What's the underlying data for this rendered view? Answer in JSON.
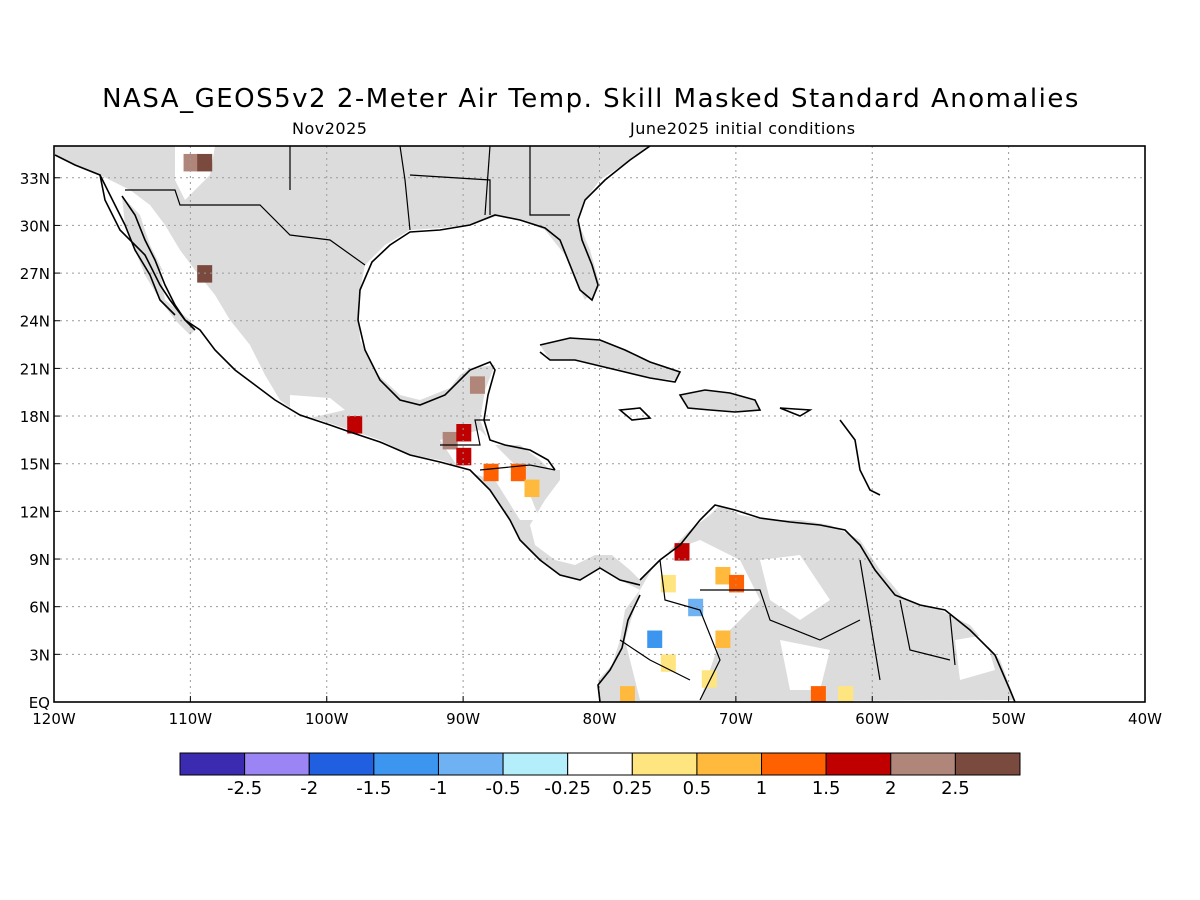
{
  "title": "NASA_GEOS5v2 2-Meter Air Temp. Skill Masked Standard Anomalies",
  "subtitle_left": "Nov2025",
  "subtitle_right": "June2025 initial conditions",
  "map": {
    "lon_range": [
      -120,
      -40
    ],
    "lat_range": [
      0,
      35
    ],
    "grid": true,
    "land_mask_color": "#dcdcdc",
    "lat_ticks": [
      {
        "lat": 33,
        "label": "33N"
      },
      {
        "lat": 30,
        "label": "30N"
      },
      {
        "lat": 27,
        "label": "27N"
      },
      {
        "lat": 24,
        "label": "24N"
      },
      {
        "lat": 21,
        "label": "21N"
      },
      {
        "lat": 18,
        "label": "18N"
      },
      {
        "lat": 15,
        "label": "15N"
      },
      {
        "lat": 12,
        "label": "12N"
      },
      {
        "lat": 9,
        "label": "9N"
      },
      {
        "lat": 6,
        "label": "6N"
      },
      {
        "lat": 3,
        "label": "3N"
      },
      {
        "lat": 0,
        "label": "EQ"
      }
    ],
    "lon_ticks": [
      {
        "lon": -120,
        "label": "120W"
      },
      {
        "lon": -110,
        "label": "110W"
      },
      {
        "lon": -100,
        "label": "100W"
      },
      {
        "lon": -90,
        "label": "90W"
      },
      {
        "lon": -80,
        "label": "80W"
      },
      {
        "lon": -70,
        "label": "70W"
      },
      {
        "lon": -60,
        "label": "60W"
      },
      {
        "lon": -50,
        "label": "50W"
      },
      {
        "lon": -40,
        "label": "40W"
      }
    ],
    "anomaly_cells": [
      {
        "lon": -110,
        "lat": 34,
        "value": 2.2
      },
      {
        "lon": -109,
        "lat": 34,
        "value": 2.7
      },
      {
        "lon": -109,
        "lat": 27,
        "value": 2.7
      },
      {
        "lon": -98,
        "lat": 17.5,
        "value": 1.8
      },
      {
        "lon": -91,
        "lat": 16.5,
        "value": 2.2
      },
      {
        "lon": -90,
        "lat": 17,
        "value": 1.9
      },
      {
        "lon": -90,
        "lat": 15.5,
        "value": 1.8
      },
      {
        "lon": -89,
        "lat": 20,
        "value": 2.3
      },
      {
        "lon": -88,
        "lat": 14.5,
        "value": 1.2
      },
      {
        "lon": -86,
        "lat": 14.5,
        "value": 1.1
      },
      {
        "lon": -85,
        "lat": 13.5,
        "value": 0.6
      },
      {
        "lon": -74,
        "lat": 9.5,
        "value": 1.8
      },
      {
        "lon": -71,
        "lat": 8,
        "value": 0.6
      },
      {
        "lon": -70,
        "lat": 7.5,
        "value": 1.2
      },
      {
        "lon": -75,
        "lat": 7.5,
        "value": 0.4
      },
      {
        "lon": -73,
        "lat": 6,
        "value": -0.8
      },
      {
        "lon": -76,
        "lat": 4,
        "value": -1.2
      },
      {
        "lon": -71,
        "lat": 4,
        "value": 0.7
      },
      {
        "lon": -75,
        "lat": 2.5,
        "value": 0.5
      },
      {
        "lon": -72,
        "lat": 1.5,
        "value": 0.4
      },
      {
        "lon": -64,
        "lat": 0.5,
        "value": 1.1
      },
      {
        "lon": -62,
        "lat": 0.5,
        "value": 0.4
      },
      {
        "lon": -78,
        "lat": 0.5,
        "value": 0.6
      }
    ]
  },
  "colorbar": {
    "colors": [
      "#3b2bb0",
      "#9b85f5",
      "#2060e0",
      "#3c96f0",
      "#6eb2f3",
      "#b4eefa",
      "#ffffff",
      "#ffe57f",
      "#ffb93c",
      "#ff6000",
      "#c00000",
      "#b0867a",
      "#7a4a3e"
    ],
    "labels": [
      "-2.5",
      "-2",
      "-1.5",
      "-1",
      "-0.5",
      "-0.25",
      "0.25",
      "0.5",
      "1",
      "1.5",
      "2",
      "2.5"
    ]
  }
}
